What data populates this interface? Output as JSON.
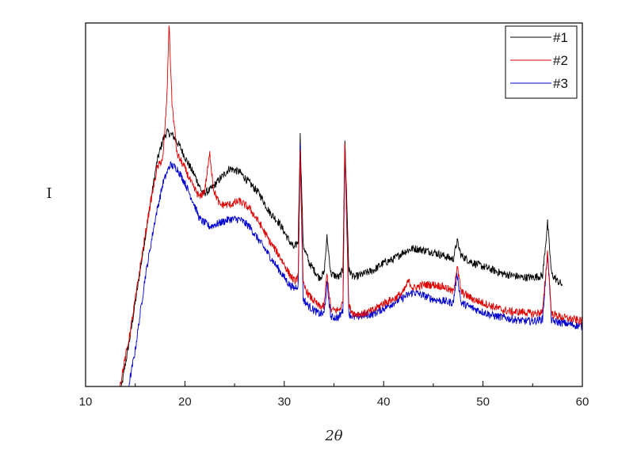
{
  "chart_data": {
    "type": "line",
    "title": "",
    "xlabel": "2θ",
    "ylabel": "I",
    "xlim": [
      10,
      60
    ],
    "ylim": [
      0,
      100
    ],
    "x_ticks": [
      10,
      20,
      30,
      40,
      50,
      60
    ],
    "y_ticks_shown": false,
    "grid": false,
    "legend": "top-right",
    "series": [
      {
        "name": "#1",
        "color": "#000000",
        "points": [
          [
            13.5,
            -2
          ],
          [
            14.5,
            14
          ],
          [
            15.5,
            32
          ],
          [
            16.5,
            50
          ],
          [
            17.2,
            62
          ],
          [
            17.8,
            68
          ],
          [
            18.2,
            70
          ],
          [
            18.8,
            69
          ],
          [
            19.5,
            66
          ],
          [
            20.2,
            62
          ],
          [
            21,
            58
          ],
          [
            21.8,
            53
          ],
          [
            22.5,
            54
          ],
          [
            23.5,
            57
          ],
          [
            24.5,
            60
          ],
          [
            25.5,
            59
          ],
          [
            26.5,
            56
          ],
          [
            27.5,
            53
          ],
          [
            28.5,
            48
          ],
          [
            29.5,
            45
          ],
          [
            30.5,
            40
          ],
          [
            31,
            38
          ],
          [
            31.4,
            40
          ],
          [
            31.6,
            69
          ],
          [
            31.9,
            39
          ],
          [
            32.5,
            34
          ],
          [
            33.5,
            30
          ],
          [
            34,
            31
          ],
          [
            34.3,
            41
          ],
          [
            34.7,
            31
          ],
          [
            35.5,
            30
          ],
          [
            35.9,
            32
          ],
          [
            36.1,
            68
          ],
          [
            36.5,
            32
          ],
          [
            37,
            30
          ],
          [
            38,
            31
          ],
          [
            39,
            32
          ],
          [
            40,
            34
          ],
          [
            41,
            35
          ],
          [
            42,
            37
          ],
          [
            43,
            38
          ],
          [
            44,
            37.5
          ],
          [
            45,
            37
          ],
          [
            46,
            36
          ],
          [
            47,
            35
          ],
          [
            47.4,
            40
          ],
          [
            47.8,
            36
          ],
          [
            49,
            34
          ],
          [
            50,
            33
          ],
          [
            51,
            32
          ],
          [
            52,
            31
          ],
          [
            53,
            30.5
          ],
          [
            54,
            30
          ],
          [
            55,
            30
          ],
          [
            56,
            30.5
          ],
          [
            56.5,
            45
          ],
          [
            56.9,
            31
          ],
          [
            57.5,
            29
          ],
          [
            58,
            28
          ]
        ]
      },
      {
        "name": "#2",
        "color": "#dd0000",
        "points": [
          [
            13.3,
            -2
          ],
          [
            14.5,
            15
          ],
          [
            15.5,
            33
          ],
          [
            16.5,
            50
          ],
          [
            17.2,
            60
          ],
          [
            17.8,
            63
          ],
          [
            18.2,
            80
          ],
          [
            18.4,
            100
          ],
          [
            18.7,
            78
          ],
          [
            19.2,
            64
          ],
          [
            20,
            60
          ],
          [
            20.8,
            55
          ],
          [
            21.5,
            52
          ],
          [
            22,
            54
          ],
          [
            22.5,
            64
          ],
          [
            22.9,
            54
          ],
          [
            23.5,
            50
          ],
          [
            24.5,
            50
          ],
          [
            25.5,
            51
          ],
          [
            26.5,
            49
          ],
          [
            27.5,
            45
          ],
          [
            28.5,
            40
          ],
          [
            29.5,
            36
          ],
          [
            30.5,
            31
          ],
          [
            31,
            29
          ],
          [
            31.4,
            30
          ],
          [
            31.6,
            65
          ],
          [
            31.9,
            28
          ],
          [
            32.5,
            25
          ],
          [
            33.5,
            22
          ],
          [
            34,
            22
          ],
          [
            34.3,
            31
          ],
          [
            34.7,
            21
          ],
          [
            35.5,
            21
          ],
          [
            35.9,
            23
          ],
          [
            36.1,
            67
          ],
          [
            36.5,
            22
          ],
          [
            37,
            20
          ],
          [
            38,
            20
          ],
          [
            39,
            21
          ],
          [
            40,
            23
          ],
          [
            41,
            24
          ],
          [
            42,
            26
          ],
          [
            42.5,
            29
          ],
          [
            43,
            27
          ],
          [
            44,
            28
          ],
          [
            45,
            28
          ],
          [
            46,
            27.5
          ],
          [
            47,
            26
          ],
          [
            47.4,
            33
          ],
          [
            47.8,
            26
          ],
          [
            49,
            24
          ],
          [
            50,
            23
          ],
          [
            51,
            22
          ],
          [
            52,
            21
          ],
          [
            53,
            20.5
          ],
          [
            54,
            20.5
          ],
          [
            55,
            20
          ],
          [
            56,
            20.5
          ],
          [
            56.5,
            37
          ],
          [
            56.9,
            20
          ],
          [
            58,
            19
          ],
          [
            59,
            18.5
          ],
          [
            60,
            18
          ]
        ]
      },
      {
        "name": "#3",
        "color": "#0000cc",
        "points": [
          [
            14.2,
            -2
          ],
          [
            15,
            10
          ],
          [
            16,
            30
          ],
          [
            17,
            46
          ],
          [
            17.8,
            56
          ],
          [
            18.5,
            61
          ],
          [
            19.2,
            60
          ],
          [
            20,
            56
          ],
          [
            20.8,
            51
          ],
          [
            21.5,
            46
          ],
          [
            22.5,
            44
          ],
          [
            23.5,
            45
          ],
          [
            24.5,
            46
          ],
          [
            25.5,
            46
          ],
          [
            26.5,
            44
          ],
          [
            27.5,
            40
          ],
          [
            28.5,
            36
          ],
          [
            29.5,
            32
          ],
          [
            30.5,
            28
          ],
          [
            31,
            27
          ],
          [
            31.4,
            28
          ],
          [
            31.6,
            66
          ],
          [
            31.9,
            24
          ],
          [
            32.5,
            22
          ],
          [
            33.5,
            20
          ],
          [
            34,
            20
          ],
          [
            34.3,
            28
          ],
          [
            34.7,
            19
          ],
          [
            35.5,
            19
          ],
          [
            35.9,
            21
          ],
          [
            36.1,
            67
          ],
          [
            36.5,
            20
          ],
          [
            37,
            19
          ],
          [
            38,
            19.5
          ],
          [
            39,
            20
          ],
          [
            40,
            21.5
          ],
          [
            41,
            23
          ],
          [
            42,
            24.5
          ],
          [
            43,
            26
          ],
          [
            44,
            25
          ],
          [
            45,
            24
          ],
          [
            46,
            23.5
          ],
          [
            47,
            23
          ],
          [
            47.4,
            31
          ],
          [
            47.8,
            23
          ],
          [
            49,
            21.5
          ],
          [
            50,
            20.5
          ],
          [
            51,
            19.5
          ],
          [
            52,
            19
          ],
          [
            53,
            18.5
          ],
          [
            54,
            18
          ],
          [
            55,
            18
          ],
          [
            56,
            18.5
          ],
          [
            56.5,
            37
          ],
          [
            56.9,
            18
          ],
          [
            58,
            17.5
          ],
          [
            59,
            17
          ],
          [
            60,
            16.5
          ]
        ]
      }
    ]
  }
}
